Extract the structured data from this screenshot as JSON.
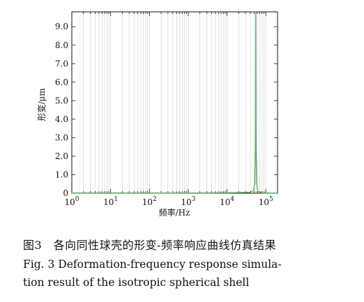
{
  "chart_data": {
    "type": "line",
    "xscale": "log",
    "xlim": [
      1,
      200000
    ],
    "ylim": [
      0,
      9.8
    ],
    "x_ticks": [
      {
        "value": 1,
        "base": "10",
        "exp": "0"
      },
      {
        "value": 10,
        "base": "10",
        "exp": "1"
      },
      {
        "value": 100,
        "base": "10",
        "exp": "2"
      },
      {
        "value": 1000,
        "base": "10",
        "exp": "3"
      },
      {
        "value": 10000,
        "base": "10",
        "exp": "4"
      },
      {
        "value": 100000,
        "base": "10",
        "exp": "5"
      }
    ],
    "y_ticks": [
      {
        "value": 0,
        "label": "0"
      },
      {
        "value": 1,
        "label": "1.0"
      },
      {
        "value": 2,
        "label": "2.0"
      },
      {
        "value": 3,
        "label": "3.0"
      },
      {
        "value": 4,
        "label": "4.0"
      },
      {
        "value": 5,
        "label": "5.0"
      },
      {
        "value": 6,
        "label": "6.0"
      },
      {
        "value": 7,
        "label": "7.0"
      },
      {
        "value": 8,
        "label": "8.0"
      },
      {
        "value": 9,
        "label": "9.0"
      }
    ],
    "xlabel": "频率/Hz",
    "ylabel": "形变/μm",
    "grid": {
      "x_minor": true,
      "y": false
    },
    "line_color": "#5aaa6a",
    "series": [
      {
        "x": [
          1,
          10,
          100,
          1000,
          10000,
          40000,
          48000,
          52000,
          54000,
          55000,
          56000,
          58000,
          62000,
          80000,
          200000
        ],
        "y": [
          0.01,
          0.01,
          0.01,
          0.01,
          0.02,
          0.05,
          0.15,
          0.5,
          2.5,
          9.8,
          2.5,
          0.5,
          0.1,
          0.02,
          0.0
        ]
      }
    ]
  },
  "caption": {
    "cn": "图3　各向同性球壳的形变-频率响应曲线仿真结果",
    "en_line1": "Fig. 3   Deformation-frequency response simula-",
    "en_line2": "tion result of the isotropic spherical shell"
  }
}
